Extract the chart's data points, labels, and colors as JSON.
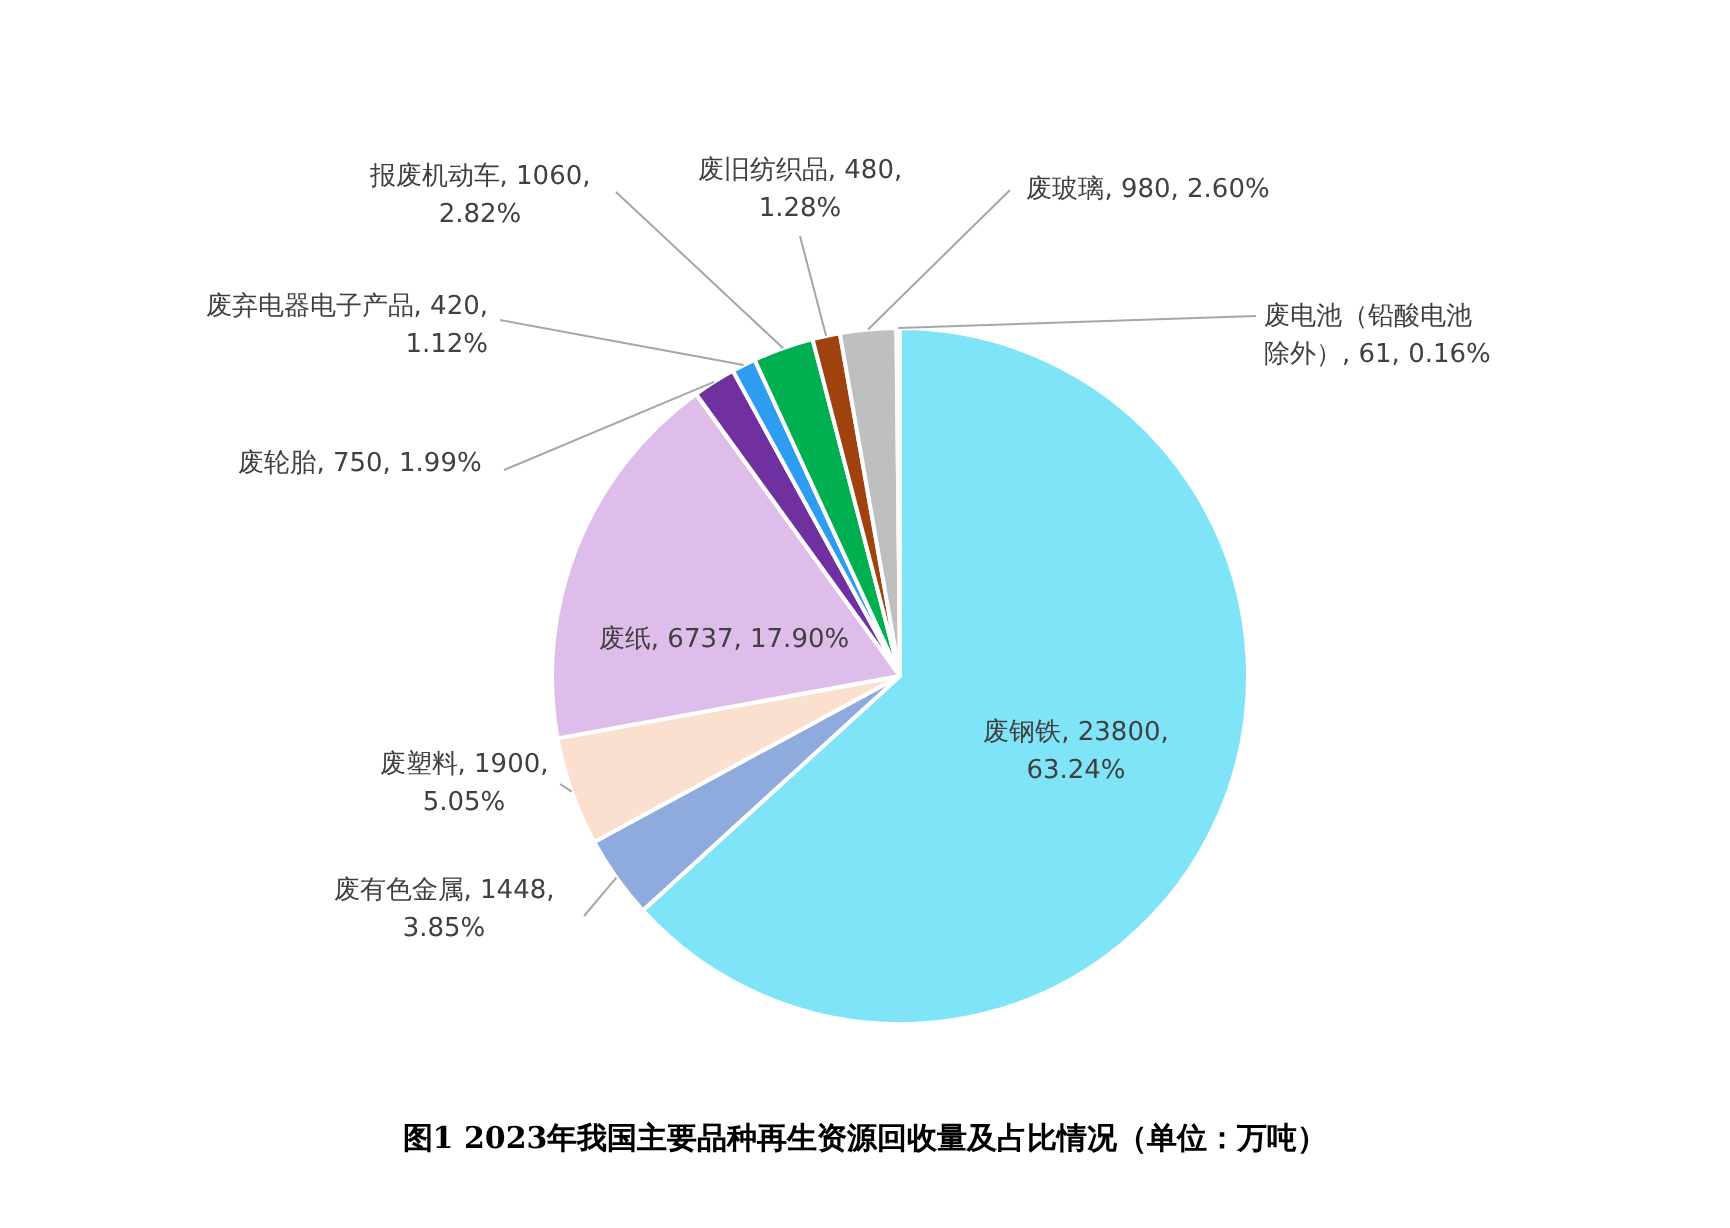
{
  "chart_data": {
    "type": "pie",
    "title": "图1 2023年我国主要品种再生资源回收量及占比情况（单位：万吨）",
    "categories": [
      "废钢铁",
      "废有色金属",
      "废塑料",
      "废纸",
      "废轮胎",
      "废弃电器电子产品",
      "报废机动车",
      "废旧纺织品",
      "废玻璃",
      "废电池（铅酸电池除外）"
    ],
    "values": [
      23800,
      1448,
      1900,
      6737,
      750,
      420,
      1060,
      480,
      980,
      61
    ],
    "value_labels": [
      "23800, 63.24%",
      "1448, 3.85%",
      "1900, 5.05%",
      "6737, 17.90%",
      "750, 1.99%",
      "420, 1.12%",
      "1060, 2.82%",
      "480, 1.28%",
      "980, 2.60%",
      "61, 0.16%"
    ],
    "colors": [
      "#80e4f8",
      "#8faadc",
      "#fbe0cf",
      "#dfbdea",
      "#7030a0",
      "#2e9cf0",
      "#00b050",
      "#a0420e",
      "#bfbfbf",
      "#f2f2f2"
    ],
    "legend": false
  }
}
